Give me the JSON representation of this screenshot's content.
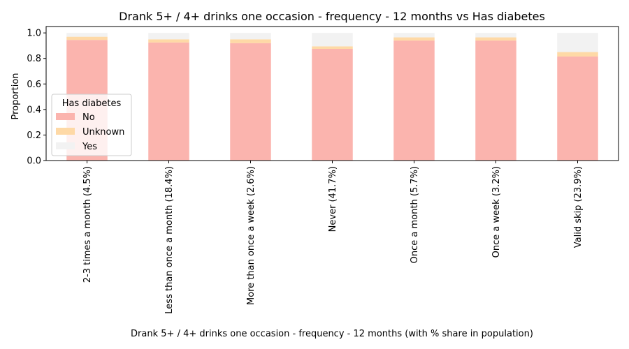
{
  "chart_data": {
    "type": "bar",
    "stacked": true,
    "title": "Drank 5+ / 4+ drinks one occasion - frequency - 12 months vs Has diabetes",
    "xlabel": "Drank 5+ / 4+ drinks one occasion - frequency - 12 months (with % share in population)",
    "ylabel": "Proportion",
    "ylim": [
      0,
      1.05
    ],
    "yticks": [
      "0.0",
      "0.2",
      "0.4",
      "0.6",
      "0.8",
      "1.0"
    ],
    "categories": [
      "2-3 times a month (4.5%)",
      "Less than once a month (18.4%)",
      "More than once a week (2.6%)",
      "Never (41.7%)",
      "Once a month (5.7%)",
      "Once a week (3.2%)",
      "Valid skip (23.9%)"
    ],
    "series": [
      {
        "name": "No",
        "color": "#fbb4ae",
        "values": [
          0.945,
          0.925,
          0.92,
          0.875,
          0.94,
          0.94,
          0.815
        ]
      },
      {
        "name": "Unknown",
        "color": "#fed9a6",
        "values": [
          0.025,
          0.025,
          0.03,
          0.02,
          0.025,
          0.025,
          0.035
        ]
      },
      {
        "name": "Yes",
        "color": "#f2f2f2",
        "values": [
          0.03,
          0.05,
          0.05,
          0.105,
          0.035,
          0.035,
          0.15
        ]
      }
    ],
    "legend": {
      "title": "Has diabetes",
      "placement": "center-left"
    },
    "grid": false
  }
}
